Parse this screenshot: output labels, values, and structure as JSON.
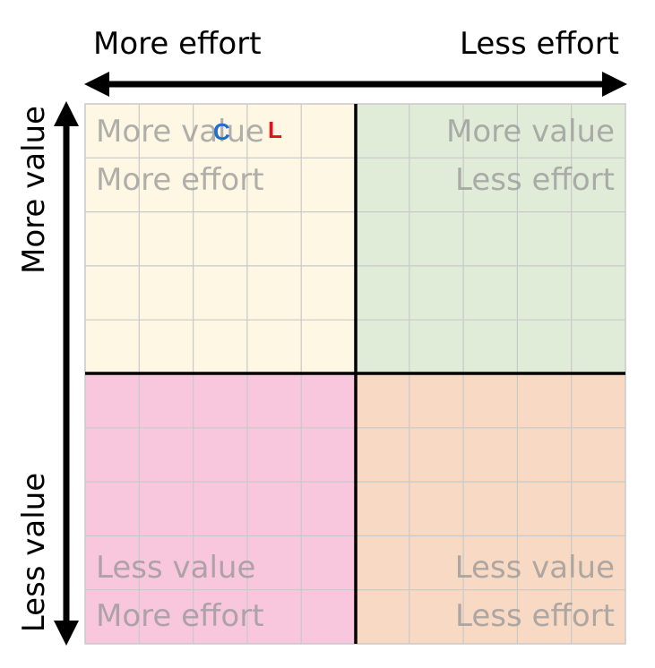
{
  "axes": {
    "top_left": "More effort",
    "top_right": "Less effort",
    "left_top": "More value",
    "left_bottom": "Less value"
  },
  "quadrants": {
    "top_left": {
      "line1": "More value",
      "line2": "More effort",
      "color": "#fdf7e3"
    },
    "top_right": {
      "line1": "More value",
      "line2": "Less effort",
      "color": "#e1ecd8"
    },
    "bottom_left": {
      "line1": "Less value",
      "line2": "More effort",
      "color": "#f8c7dd"
    },
    "bottom_right": {
      "line1": "Less value",
      "line2": "Less effort",
      "color": "#f8d9c3"
    }
  },
  "markers": [
    {
      "label": "C",
      "color": "#1f6fd1"
    },
    {
      "label": "L",
      "color": "#e0121b"
    }
  ],
  "colors": {
    "grid_line": "#c9c9c9",
    "divider": "#000000",
    "axis_arrow": "#000000"
  }
}
